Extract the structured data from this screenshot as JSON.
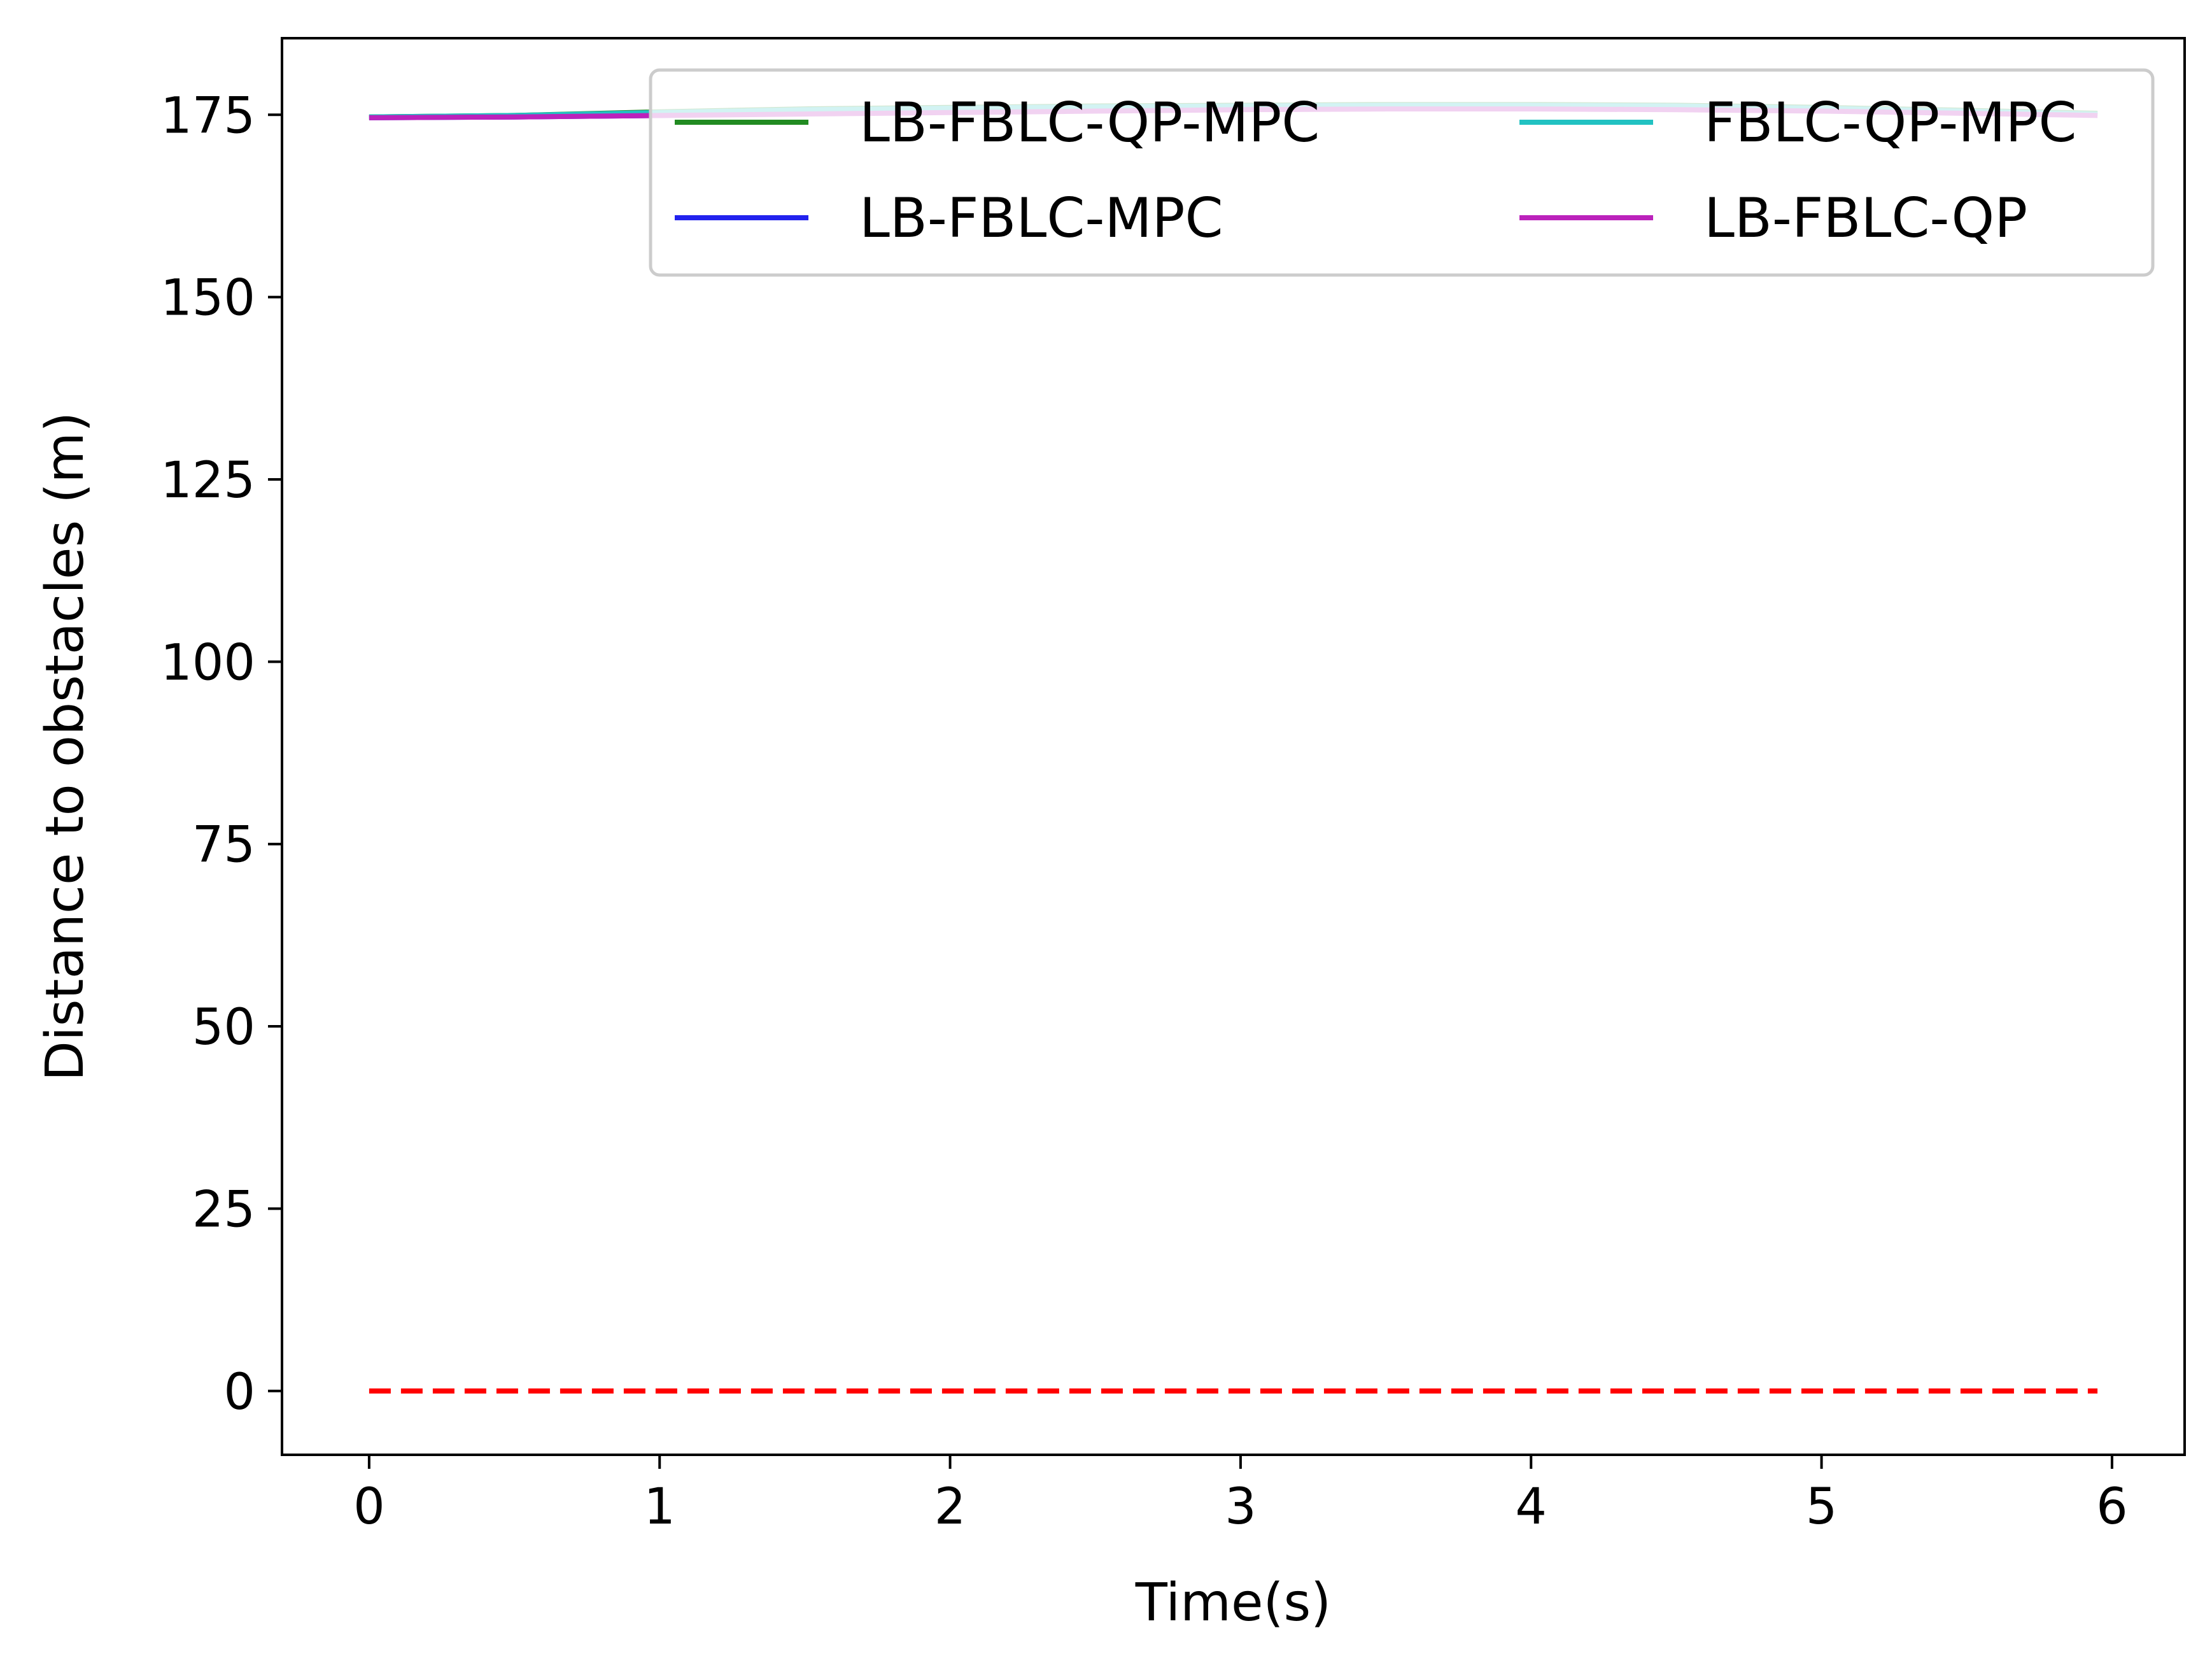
{
  "chart_data": {
    "type": "line",
    "xlabel": "Time(s)",
    "ylabel": "Distance to obstacles (m)",
    "xlim": [
      -0.3,
      6.25
    ],
    "ylim": [
      -8.75,
      185.5
    ],
    "xticks": [
      0,
      1,
      2,
      3,
      4,
      5,
      6
    ],
    "yticks": [
      0,
      25,
      50,
      75,
      100,
      125,
      150,
      175
    ],
    "grid": false,
    "legend": {
      "placement": "top-right",
      "columns": 2
    },
    "series": [
      {
        "name": "LB-FBLC-QP-MPC",
        "color": "#228B22",
        "x": [
          0,
          0.5,
          1.0,
          1.5,
          2.0,
          2.5,
          3.0,
          3.5,
          4.0,
          4.5,
          5.0,
          5.5,
          5.95
        ],
        "y": [
          174.7,
          174.9,
          175.4,
          175.8,
          176.0,
          176.2,
          176.3,
          176.4,
          176.4,
          176.3,
          176.0,
          175.6,
          175.2
        ]
      },
      {
        "name": "LB-FBLC-MPC",
        "color": "#2222EE",
        "x": [
          0,
          0.5,
          1.0,
          1.5,
          2.0,
          2.5,
          3.0,
          3.5,
          4.0,
          4.5,
          5.0,
          5.5,
          5.95
        ],
        "y": [
          174.6,
          174.7,
          174.9,
          175.2,
          175.5,
          175.7,
          175.9,
          176.0,
          176.0,
          175.9,
          175.7,
          175.4,
          175.0
        ]
      },
      {
        "name": "FBLC-QP-MPC",
        "color": "#22C2C2",
        "x": [
          0,
          0.5,
          1.0,
          1.5,
          2.0,
          2.5,
          3.0,
          3.5,
          4.0,
          4.5,
          5.0,
          5.5,
          5.95
        ],
        "y": [
          174.7,
          174.9,
          175.3,
          175.7,
          175.9,
          176.1,
          176.2,
          176.3,
          176.3,
          176.2,
          175.9,
          175.5,
          175.1
        ]
      },
      {
        "name": "LB-FBLC-QP",
        "color": "#BB22BB",
        "x": [
          0,
          0.5,
          1.0,
          1.5,
          2.0,
          2.5,
          3.0,
          3.5,
          4.0,
          4.5,
          5.0,
          5.5,
          5.95
        ],
        "y": [
          174.6,
          174.7,
          174.9,
          175.1,
          175.3,
          175.5,
          175.7,
          175.8,
          175.8,
          175.7,
          175.5,
          175.2,
          174.9
        ]
      }
    ],
    "reference_line": {
      "color": "#FF0000",
      "style": "dashed",
      "x": [
        0,
        5.95
      ],
      "y": [
        0,
        0
      ]
    }
  }
}
